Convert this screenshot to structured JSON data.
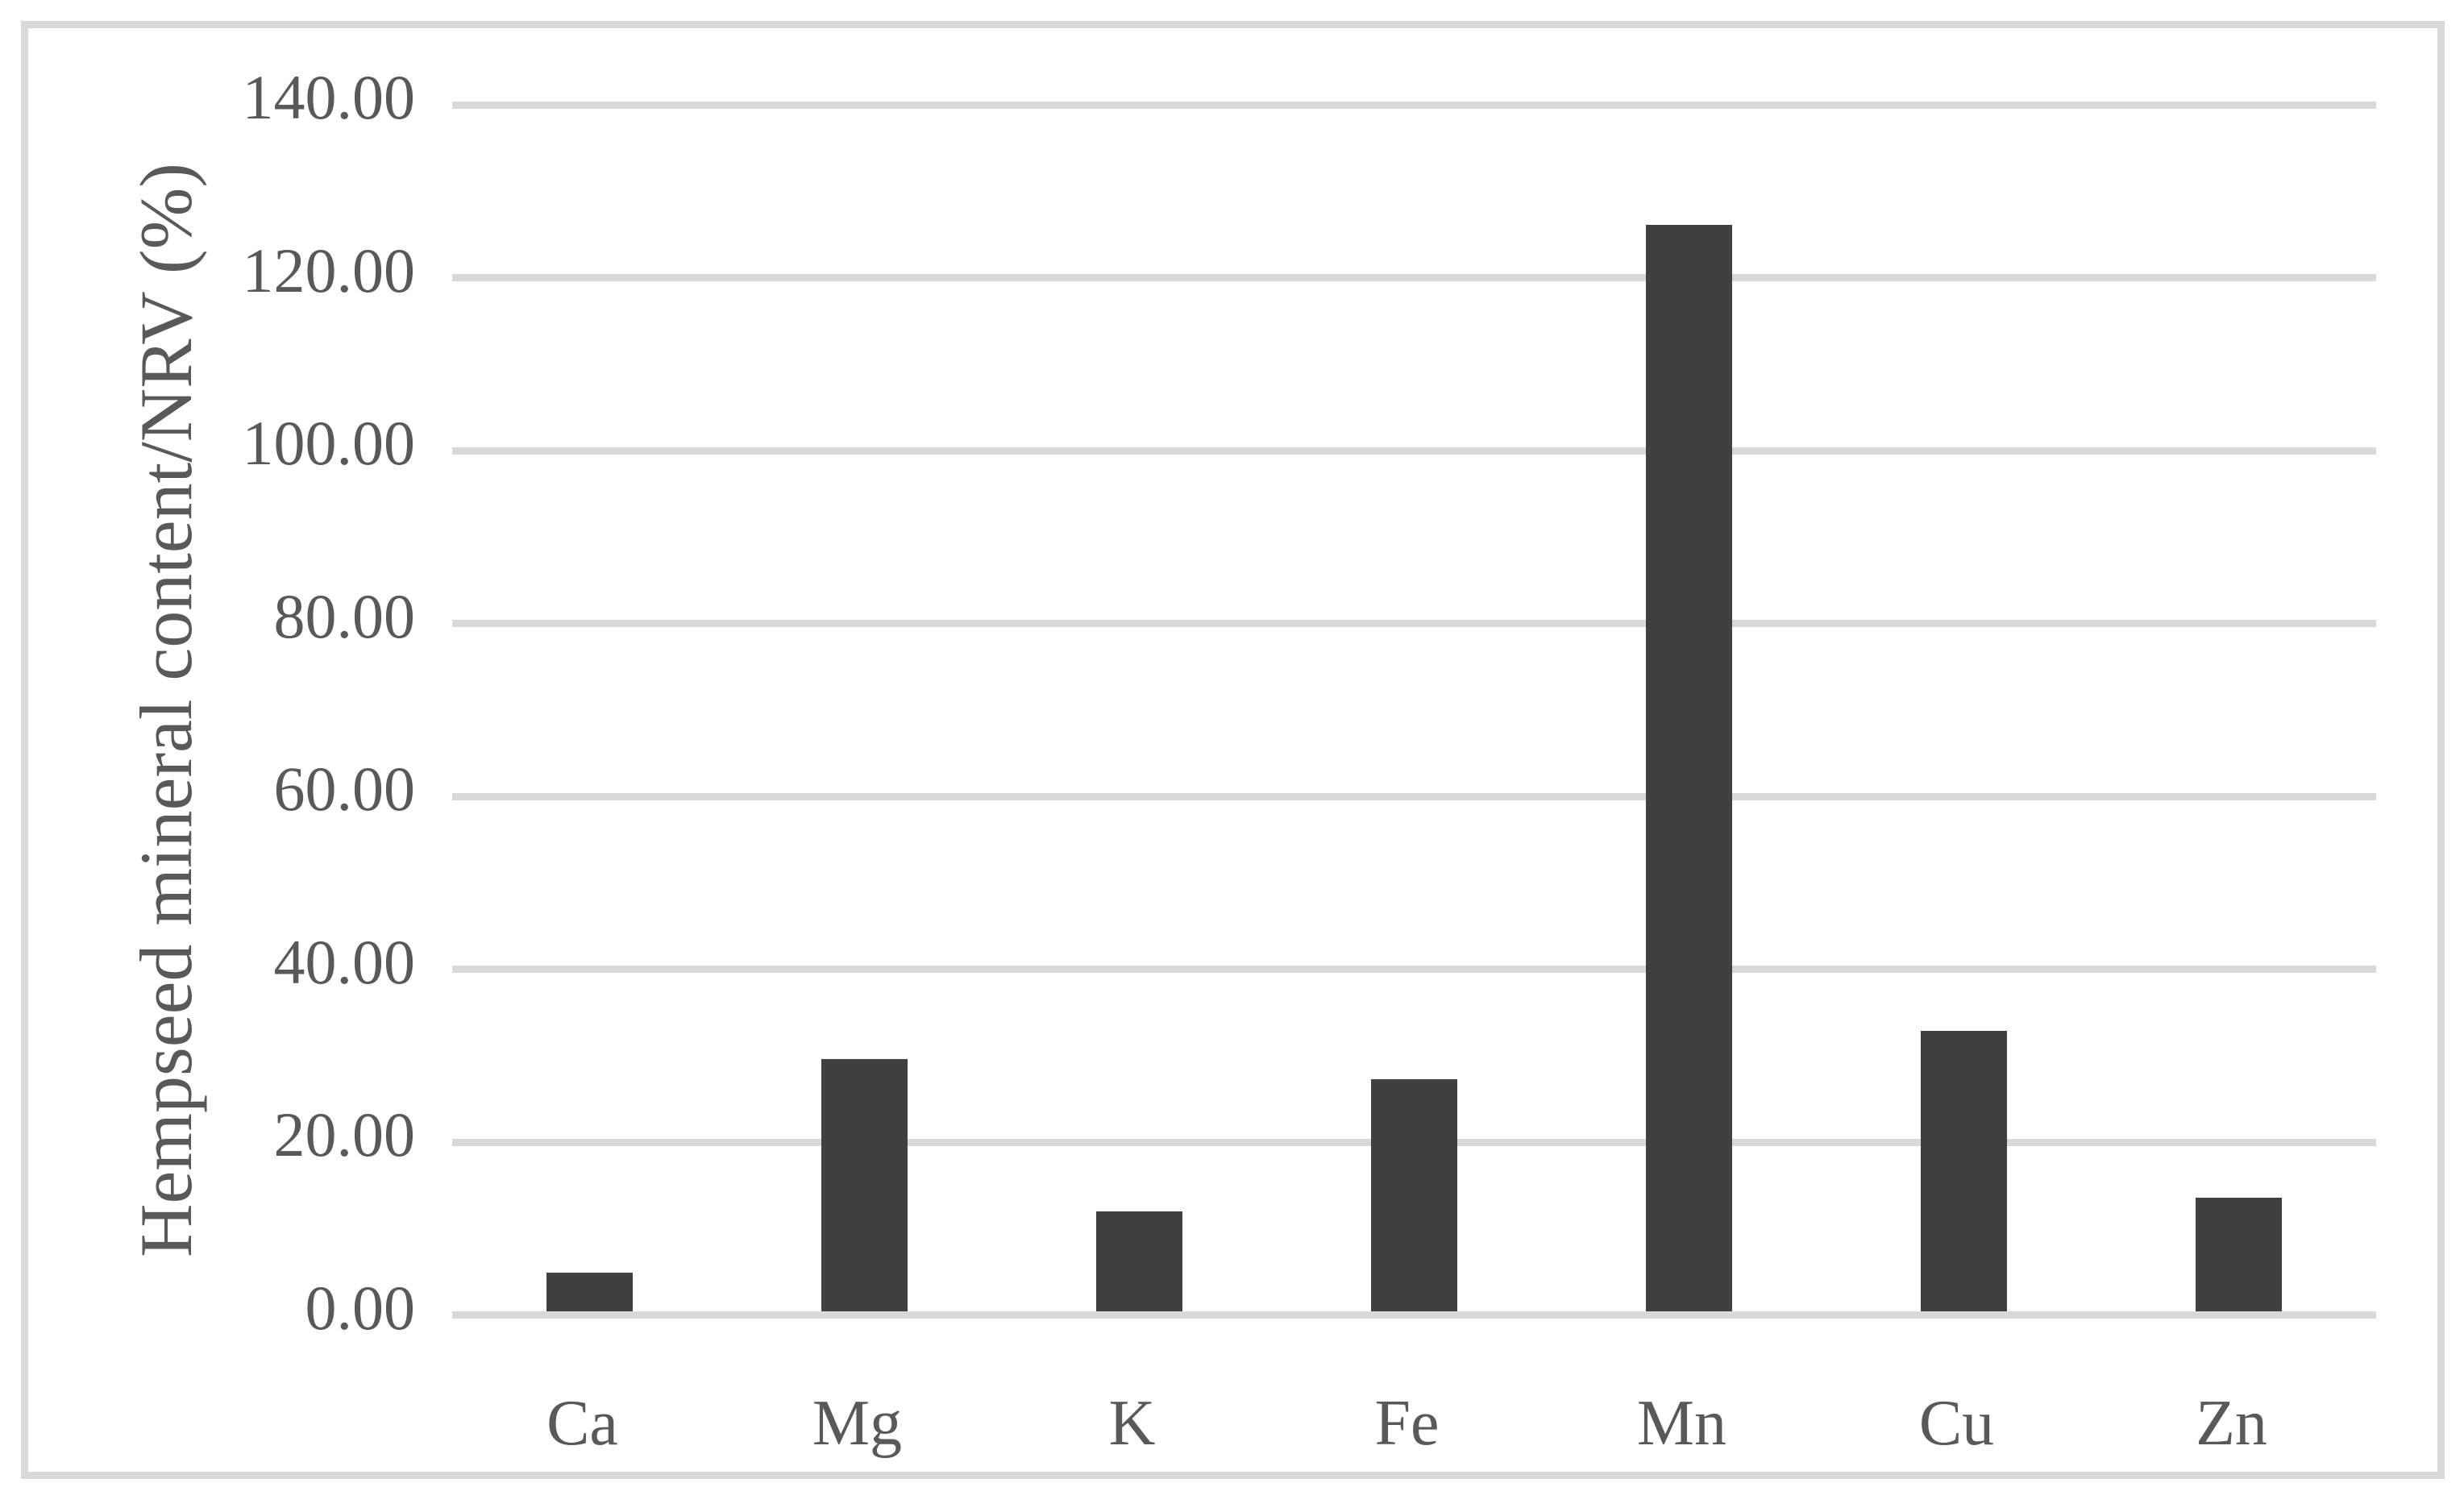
{
  "chart_data": {
    "type": "bar",
    "title": "",
    "xlabel": "",
    "ylabel": "Hempseed mineral content/NRV (%)",
    "categories": [
      "Ca",
      "Mg",
      "K",
      "Fe",
      "Mn",
      "Cu",
      "Zn"
    ],
    "values": [
      4.9,
      29.6,
      12.0,
      27.3,
      126.1,
      32.9,
      13.6
    ],
    "series": [
      {
        "name": "Hempseed mineral content/NRV (%)",
        "values": [
          4.9,
          29.6,
          12.0,
          27.3,
          126.1,
          32.9,
          13.6
        ]
      }
    ],
    "ylim": [
      0,
      140
    ],
    "ytick_step": 20,
    "ytick_labels": [
      "0.00",
      "20.00",
      "40.00",
      "60.00",
      "80.00",
      "100.00",
      "120.00",
      "140.00"
    ],
    "grid": "horizontal-only",
    "legend": "none",
    "bar_color": "#404040",
    "gridline_color": "#d9d9d9",
    "frame_border_color": "#d9d9d9",
    "text_color": "#595959",
    "background_color": "#ffffff"
  }
}
